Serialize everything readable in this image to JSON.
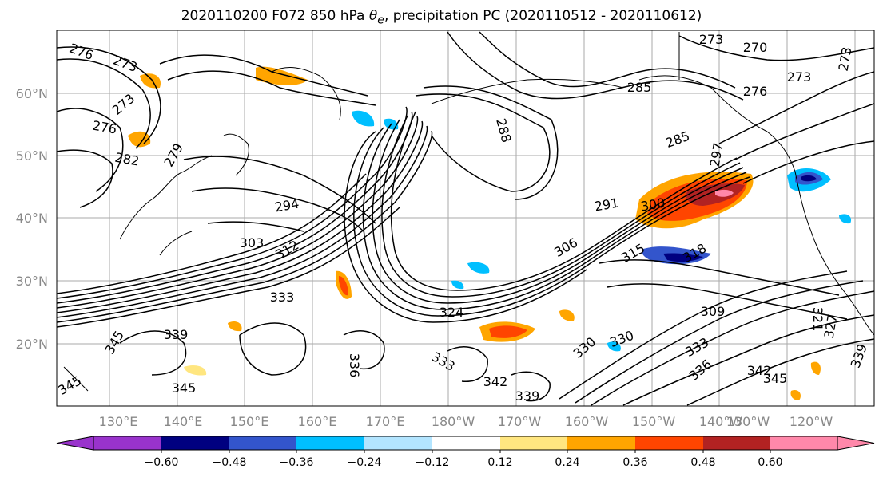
{
  "title": "2020110200 F072 850 hPa θe, precipitation PC (2020110512 - 2020110612)",
  "lat_labels": [
    "60°N",
    "50°N",
    "40°N",
    "30°N",
    "20°N"
  ],
  "lon_labels": [
    "130°E",
    "140°E",
    "150°E",
    "160°E",
    "170°E",
    "180°W",
    "170°W",
    "160°W",
    "150°W",
    "140°W",
    "130°W",
    "120°W"
  ],
  "contour_labels": [
    "276",
    "273",
    "273",
    "276",
    "282",
    "279",
    "270",
    "273",
    "276",
    "273",
    "273",
    "285",
    "288",
    "285",
    "297",
    "291",
    "300",
    "294",
    "303",
    "312",
    "306",
    "315",
    "318",
    "309",
    "333",
    "324",
    "339",
    "336",
    "333",
    "345",
    "345",
    "345",
    "342",
    "339",
    "330",
    "330",
    "333",
    "336",
    "342",
    "345",
    "321",
    "327",
    "339"
  ],
  "colorbar": {
    "ticks": [
      "−0.60",
      "−0.48",
      "−0.36",
      "−0.24",
      "−0.12",
      "0.12",
      "0.24",
      "0.36",
      "0.48",
      "0.60"
    ],
    "colors": [
      "#9933cc",
      "#000080",
      "#3355cc",
      "#00bfff",
      "#b3e5ff",
      "#ffffff",
      "#ffe680",
      "#ffa500",
      "#ff4500",
      "#b22222",
      "#ff88aa"
    ]
  },
  "palette": {
    "contour": "#000000",
    "grid": "#aaaaaa",
    "coast": "#000000"
  }
}
